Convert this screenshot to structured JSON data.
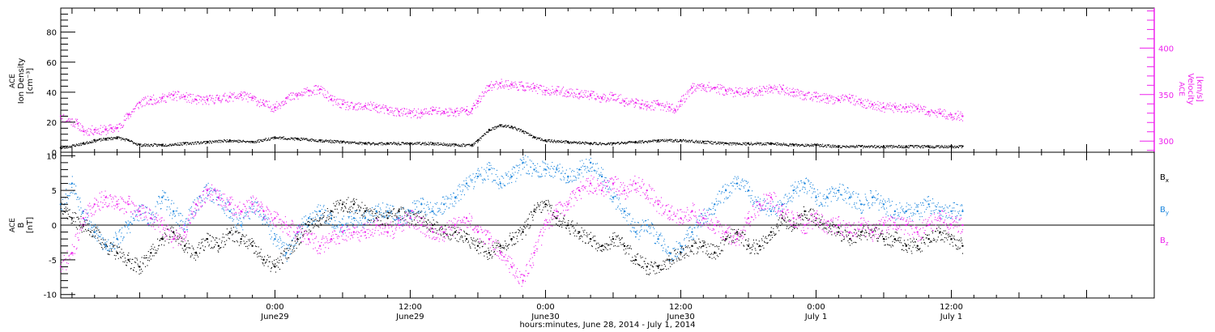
{
  "colors": {
    "black": "#000000",
    "magenta": "#ee22ee",
    "blue": "#1a85dd",
    "axis": "#000000"
  },
  "x_axis": {
    "title": "hours:minutes, June 28, 2014 - July  1, 2014",
    "major_ticks": [
      {
        "hour": 18,
        "time": "0:00",
        "date": "June29"
      },
      {
        "hour": 30,
        "time": "12:00",
        "date": "June29"
      },
      {
        "hour": 42,
        "time": "0:00",
        "date": "June30"
      },
      {
        "hour": 54,
        "time": "12:00",
        "date": "June30"
      },
      {
        "hour": 66,
        "time": "0:00",
        "date": "July 1"
      },
      {
        "hour": 78,
        "time": "12:00",
        "date": "July 1"
      }
    ],
    "range_hours": [
      -1,
      96
    ]
  },
  "chart_data": [
    {
      "type": "scatter",
      "ylabel_left": [
        "ACE",
        "Ion Density",
        "[cm⁻³]"
      ],
      "ylabel_right": [
        "ACE",
        "Velocity",
        "[km/s]"
      ],
      "yticks_left": [
        0,
        20,
        40,
        60,
        80
      ],
      "ylim_left": [
        0,
        96
      ],
      "yticks_right": [
        300,
        350,
        400
      ],
      "ylim_right": [
        288,
        443
      ],
      "series": [
        {
          "axis": "left",
          "color": "magenta",
          "x": [
            -1,
            0.5,
            1,
            2,
            3,
            3.5,
            4,
            5,
            6,
            7,
            8,
            9,
            10,
            11,
            12,
            13,
            14,
            15,
            16,
            17,
            18,
            19,
            20,
            21,
            22,
            23,
            24,
            25,
            26,
            27,
            28,
            29,
            30,
            31,
            32,
            33,
            34,
            35,
            35.5,
            36,
            37,
            38,
            39,
            40,
            41,
            42,
            43,
            44,
            45,
            46,
            47,
            48,
            49,
            50,
            50.5,
            51,
            52,
            53,
            53.5,
            54,
            55,
            56,
            57,
            58,
            59,
            60,
            61,
            62,
            63,
            64,
            65,
            66,
            67,
            68,
            69,
            70,
            71,
            72,
            73,
            74,
            75,
            76,
            77,
            78,
            79
          ],
          "y": [
            24,
            19,
            14,
            15,
            15,
            16,
            16,
            25,
            33,
            35,
            36,
            38,
            37,
            35,
            35,
            36,
            37,
            38,
            36,
            32,
            30,
            36,
            38,
            41,
            42,
            35,
            32,
            30,
            31,
            30,
            28,
            27,
            26,
            26,
            28,
            27,
            27,
            28,
            29,
            34,
            44,
            46,
            45,
            44,
            43,
            41,
            41,
            40,
            39,
            38,
            36,
            38,
            34,
            33,
            32,
            31,
            32,
            30,
            28,
            34,
            43,
            44,
            43,
            41,
            40,
            40,
            41,
            43,
            42,
            40,
            38,
            37,
            36,
            35,
            36,
            33,
            32,
            30,
            30,
            30,
            29,
            27,
            26,
            25,
            24
          ]
        },
        {
          "axis": "left",
          "color": "black",
          "x": [
            -1,
            1,
            2,
            3,
            4,
            5,
            6,
            8,
            10,
            12,
            14,
            16,
            18,
            20,
            22,
            24,
            26,
            28,
            30,
            32,
            34,
            35.5,
            36,
            37,
            38,
            39,
            40,
            41,
            42,
            44,
            46,
            48,
            50,
            52,
            54,
            56,
            58,
            60,
            62,
            64,
            66,
            68,
            70,
            72,
            74,
            76,
            78,
            79
          ],
          "y": [
            3,
            6,
            8,
            9,
            10,
            8,
            5,
            5,
            6,
            7,
            8,
            7,
            10,
            9,
            8,
            7,
            6,
            6,
            6,
            6,
            5,
            5,
            8,
            15,
            18,
            17,
            14,
            10,
            8,
            7,
            6,
            6,
            7,
            8,
            8,
            7,
            6,
            6,
            6,
            5,
            5,
            4,
            4,
            4,
            4,
            4,
            4,
            4
          ]
        }
      ]
    },
    {
      "type": "scatter",
      "ylabel_left": [
        "ACE",
        "B",
        "[nT]"
      ],
      "yticks_left": [
        -10,
        -5,
        0,
        5,
        10
      ],
      "ylim_left": [
        -10.5,
        10.5
      ],
      "legend": [
        "Bx",
        "By",
        "Bz"
      ],
      "legend_placement": "right",
      "zero_line": true,
      "series": [
        {
          "name": "Bx",
          "color": "black",
          "x": [
            -1,
            0,
            1,
            2,
            3,
            4,
            5,
            6,
            7,
            8,
            9,
            10,
            11,
            12,
            13,
            14,
            15,
            16,
            17,
            18,
            19,
            20,
            21,
            22,
            23,
            24,
            25,
            26,
            27,
            28,
            29,
            30,
            31,
            32,
            33,
            34,
            35,
            36,
            37,
            38,
            39,
            40,
            41,
            42,
            43,
            44,
            45,
            46,
            47,
            48,
            49,
            50,
            51,
            52,
            53,
            54,
            55,
            56,
            57,
            58,
            59,
            60,
            61,
            62,
            63,
            64,
            65,
            66,
            67,
            68,
            69,
            70,
            71,
            72,
            73,
            74,
            75,
            76,
            77,
            78,
            79
          ],
          "y": [
            3,
            1,
            0,
            -1,
            -3,
            -4,
            -5,
            -6,
            -4,
            -2,
            -1,
            -3,
            -4,
            -2,
            -3,
            -1,
            -2,
            -3,
            -5,
            -6,
            -4,
            -2,
            0,
            1,
            2,
            3,
            3,
            2,
            1,
            1,
            2,
            1,
            1,
            0,
            -1,
            -1,
            -2,
            -3,
            -4,
            -3,
            -2,
            -1,
            2,
            3,
            1,
            0,
            -1,
            -2,
            -3,
            -2,
            -3,
            -5,
            -6,
            -6,
            -5,
            -4,
            -3,
            -3,
            -4,
            -2,
            -1,
            -3,
            -3,
            -1,
            1,
            0,
            2,
            1,
            0,
            -1,
            -2,
            -1,
            -1,
            -2,
            -2,
            -3,
            -3,
            -2,
            -1,
            -2,
            -3
          ]
        },
        {
          "name": "By",
          "color": "blue",
          "x": [
            -1,
            0,
            1,
            2,
            3,
            4,
            5,
            6,
            7,
            8,
            9,
            10,
            11,
            12,
            13,
            14,
            15,
            16,
            17,
            18,
            19,
            20,
            21,
            22,
            23,
            24,
            25,
            26,
            27,
            28,
            29,
            30,
            31,
            32,
            33,
            34,
            35,
            36,
            37,
            38,
            39,
            40,
            41,
            42,
            43,
            44,
            45,
            46,
            47,
            48,
            49,
            50,
            51,
            52,
            53,
            54,
            55,
            56,
            57,
            58,
            59,
            60,
            61,
            62,
            63,
            64,
            65,
            66,
            67,
            68,
            69,
            70,
            71,
            72,
            73,
            74,
            75,
            76,
            77,
            78,
            79
          ],
          "y": [
            3,
            6,
            2,
            -1,
            -3,
            -2,
            0,
            2,
            1,
            4,
            2,
            0,
            3,
            5,
            4,
            2,
            0,
            3,
            1,
            -2,
            -4,
            -1,
            1,
            2,
            1,
            0,
            1,
            1,
            2,
            2,
            1,
            2,
            3,
            2,
            3,
            4,
            6,
            7,
            8,
            6,
            7,
            9,
            8,
            8,
            8,
            7,
            8,
            9,
            7,
            4,
            2,
            -1,
            0,
            -2,
            -4,
            -3,
            -1,
            1,
            3,
            5,
            6,
            5,
            3,
            2,
            3,
            5,
            6,
            4,
            4,
            5,
            4,
            3,
            4,
            3,
            2,
            2,
            2,
            3,
            2,
            2,
            2
          ]
        },
        {
          "name": "Bz",
          "color": "magenta",
          "x": [
            -1,
            0,
            1,
            2,
            3,
            4,
            5,
            6,
            7,
            8,
            9,
            10,
            11,
            12,
            13,
            14,
            15,
            16,
            17,
            18,
            19,
            20,
            21,
            22,
            23,
            24,
            25,
            26,
            27,
            28,
            29,
            30,
            31,
            32,
            33,
            34,
            35,
            36,
            37,
            38,
            39,
            40,
            41,
            42,
            43,
            44,
            45,
            46,
            47,
            48,
            49,
            50,
            51,
            52,
            53,
            54,
            55,
            56,
            57,
            58,
            59,
            60,
            61,
            62,
            63,
            64,
            65,
            66,
            67,
            68,
            69,
            70,
            71,
            72,
            73,
            74,
            75,
            76,
            77,
            78,
            79
          ],
          "y": [
            -6,
            -4,
            1,
            3,
            4,
            3,
            3,
            2,
            1,
            0,
            -2,
            -1,
            3,
            5,
            4,
            3,
            2,
            3,
            2,
            1,
            0,
            -1,
            -2,
            -3,
            -2,
            -1,
            -1,
            -1,
            0,
            -1,
            0,
            1,
            0,
            -1,
            -1,
            0,
            1,
            -1,
            -2,
            -4,
            -6,
            -8,
            -4,
            0,
            2,
            3,
            5,
            6,
            5,
            6,
            5,
            6,
            5,
            3,
            2,
            1,
            2,
            1,
            0,
            -1,
            -2,
            1,
            3,
            4,
            2,
            1,
            0,
            1,
            0,
            0,
            -1,
            0,
            -1,
            0,
            0,
            0,
            -1,
            0,
            1,
            0,
            0
          ]
        }
      ]
    }
  ]
}
